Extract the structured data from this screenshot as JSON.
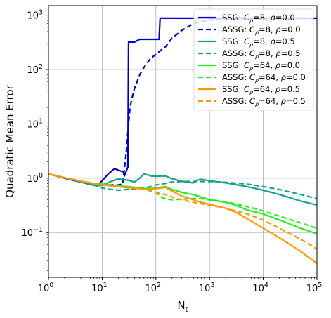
{
  "chart_data": {
    "type": "line",
    "xlabel": "N",
    "xlabel_sub": "t",
    "ylabel": "Quadratic Mean Error",
    "xscale": "log",
    "yscale": "log",
    "xlim": [
      1,
      100000
    ],
    "ylim": [
      0.015,
      1500
    ],
    "grid": true,
    "legend_position": "top-right",
    "xticks": [
      {
        "value": 1,
        "base": "10",
        "exp": "0"
      },
      {
        "value": 10,
        "base": "10",
        "exp": "1"
      },
      {
        "value": 100,
        "base": "10",
        "exp": "2"
      },
      {
        "value": 1000,
        "base": "10",
        "exp": "3"
      },
      {
        "value": 10000,
        "base": "10",
        "exp": "4"
      },
      {
        "value": 100000,
        "base": "10",
        "exp": "5"
      }
    ],
    "yticks": [
      {
        "value": 0.1,
        "base": "10",
        "exp": "−1"
      },
      {
        "value": 1,
        "base": "10",
        "exp": "0"
      },
      {
        "value": 10,
        "base": "10",
        "exp": "1"
      },
      {
        "value": 100,
        "base": "10",
        "exp": "2"
      },
      {
        "value": 1000,
        "base": "10",
        "exp": "3"
      }
    ],
    "series": [
      {
        "name": "SSG: C_ρ=8, ρ=0.0",
        "legend": {
          "method": "SSG",
          "c": "8",
          "rho": "0.0"
        },
        "color": "#0000cc",
        "dash": "solid",
        "x": [
          1,
          2,
          4,
          8,
          10,
          13,
          17,
          20,
          25,
          26,
          30,
          31,
          35,
          40,
          50,
          60,
          80,
          100,
          115,
          120,
          300,
          1000,
          100000
        ],
        "y": [
          1.2,
          1.0,
          0.85,
          0.72,
          0.9,
          1.2,
          1.5,
          1.4,
          1.3,
          1.1,
          1.6,
          320,
          320,
          320,
          360,
          360,
          360,
          360,
          360,
          880,
          880,
          880,
          880
        ]
      },
      {
        "name": "ASSG: C_ρ=8, ρ=0.0",
        "legend": {
          "method": "ASSG",
          "c": "8",
          "rho": "0.0"
        },
        "color": "#0000cc",
        "dash": "dashed",
        "x": [
          1,
          2,
          4,
          8,
          10,
          15,
          20,
          24,
          26,
          28,
          30,
          33,
          36,
          40,
          50,
          60,
          70,
          80,
          100,
          120,
          150,
          200,
          300,
          500,
          1000,
          2000,
          5000,
          10000,
          100000
        ],
        "y": [
          1.2,
          1.0,
          0.85,
          0.72,
          0.75,
          0.75,
          0.75,
          0.78,
          1.5,
          3,
          7,
          20,
          30,
          45,
          80,
          110,
          135,
          160,
          190,
          220,
          260,
          380,
          520,
          700,
          830,
          860,
          870,
          870,
          870
        ]
      },
      {
        "name": "SSG: C_ρ=8, ρ=0.5",
        "legend": {
          "method": "SSG",
          "c": "8",
          "rho": "0.5"
        },
        "color": "#12a58a",
        "dash": "solid",
        "x": [
          1,
          2,
          4,
          8,
          10,
          15,
          20,
          30,
          40,
          50,
          60,
          70,
          80,
          100,
          150,
          200,
          300,
          500,
          600,
          700,
          1000,
          2000,
          5000,
          10000,
          20000,
          50000,
          100000
        ],
        "y": [
          1.2,
          1.02,
          0.86,
          0.72,
          0.75,
          0.88,
          0.97,
          0.92,
          0.85,
          1.0,
          1.2,
          1.15,
          1.1,
          1.08,
          1.1,
          0.98,
          0.88,
          0.82,
          0.92,
          0.95,
          0.9,
          0.82,
          0.7,
          0.6,
          0.5,
          0.38,
          0.32
        ]
      },
      {
        "name": "ASSG: C_ρ=8, ρ=0.5",
        "legend": {
          "method": "ASSG",
          "c": "8",
          "rho": "0.5"
        },
        "color": "#12a58a",
        "dash": "dashed",
        "x": [
          1,
          2,
          4,
          8,
          10,
          15,
          20,
          30,
          40,
          50,
          60,
          80,
          100,
          150,
          200,
          300,
          500,
          1000,
          2000,
          5000,
          10000,
          20000,
          50000,
          100000
        ],
        "y": [
          1.2,
          1.02,
          0.86,
          0.72,
          0.66,
          0.62,
          0.6,
          0.62,
          0.63,
          0.64,
          0.66,
          0.7,
          0.75,
          0.8,
          0.85,
          0.87,
          0.87,
          0.87,
          0.84,
          0.78,
          0.7,
          0.62,
          0.5,
          0.42
        ]
      },
      {
        "name": "SSG: C_ρ=64, ρ=0.0",
        "legend": {
          "method": "SSG",
          "c": "64",
          "rho": "0.0"
        },
        "color": "#22ee22",
        "dash": "solid",
        "x": [
          1,
          2,
          4,
          8,
          10,
          15,
          20,
          30,
          50,
          70,
          100,
          150,
          200,
          300,
          400,
          500,
          700,
          1000,
          2000,
          3000,
          5000,
          10000,
          20000,
          50000,
          100000
        ],
        "y": [
          1.2,
          1.02,
          0.88,
          0.78,
          0.78,
          0.74,
          0.72,
          0.7,
          0.66,
          0.64,
          0.66,
          0.7,
          0.62,
          0.55,
          0.52,
          0.5,
          0.45,
          0.4,
          0.36,
          0.32,
          0.26,
          0.22,
          0.17,
          0.12,
          0.095
        ]
      },
      {
        "name": "ASSG: C_ρ=64, ρ=0.0",
        "legend": {
          "method": "ASSG",
          "c": "64",
          "rho": "0.0"
        },
        "color": "#22ee22",
        "dash": "dashed",
        "x": [
          1,
          2,
          4,
          8,
          10,
          15,
          20,
          30,
          50,
          70,
          100,
          120,
          130,
          150,
          200,
          300,
          500,
          700,
          1000,
          2000,
          5000,
          10000,
          20000,
          50000,
          100000
        ],
        "y": [
          1.2,
          1.02,
          0.88,
          0.78,
          0.78,
          0.74,
          0.72,
          0.7,
          0.66,
          0.62,
          0.55,
          0.47,
          0.44,
          0.42,
          0.4,
          0.41,
          0.42,
          0.42,
          0.4,
          0.37,
          0.3,
          0.25,
          0.2,
          0.15,
          0.12
        ]
      },
      {
        "name": "SSG: C_ρ=64, ρ=0.5",
        "legend": {
          "method": "SSG",
          "c": "64",
          "rho": "0.5"
        },
        "color": "#ff9900",
        "dash": "solid",
        "x": [
          1,
          2,
          4,
          8,
          10,
          15,
          20,
          30,
          50,
          70,
          100,
          150,
          200,
          300,
          400,
          500,
          700,
          1000,
          2000,
          3000,
          5000,
          10000,
          20000,
          50000,
          100000
        ],
        "y": [
          1.2,
          1.02,
          0.88,
          0.78,
          0.76,
          0.72,
          0.7,
          0.67,
          0.64,
          0.62,
          0.64,
          0.68,
          0.58,
          0.47,
          0.43,
          0.4,
          0.36,
          0.33,
          0.28,
          0.24,
          0.18,
          0.12,
          0.08,
          0.045,
          0.027
        ]
      },
      {
        "name": "ASSG: C_ρ=64, ρ=0.5",
        "legend": {
          "method": "ASSG",
          "c": "64",
          "rho": "0.5"
        },
        "color": "#ff9900",
        "dash": "dashed",
        "x": [
          1,
          2,
          4,
          8,
          10,
          15,
          20,
          30,
          50,
          70,
          100,
          150,
          200,
          300,
          500,
          700,
          1000,
          2000,
          5000,
          10000,
          20000,
          50000,
          100000
        ],
        "y": [
          1.2,
          1.02,
          0.88,
          0.78,
          0.76,
          0.72,
          0.7,
          0.67,
          0.64,
          0.6,
          0.55,
          0.5,
          0.45,
          0.4,
          0.36,
          0.34,
          0.32,
          0.28,
          0.22,
          0.17,
          0.12,
          0.075,
          0.05
        ]
      }
    ]
  }
}
